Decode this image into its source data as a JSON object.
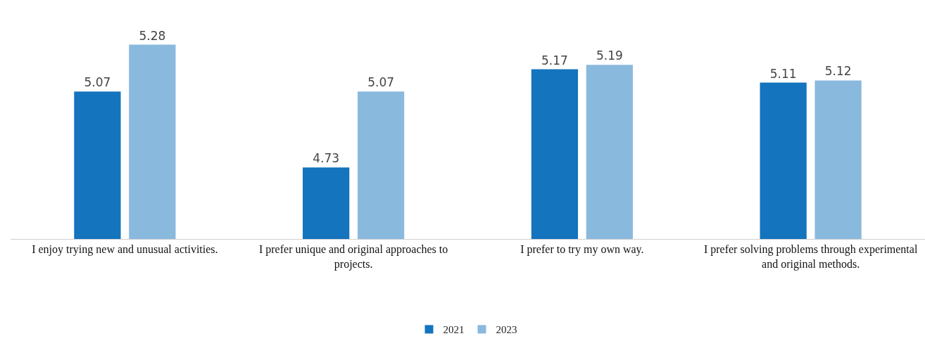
{
  "chart_data": {
    "type": "bar",
    "categories": [
      "I enjoy trying new and unusual activities.",
      "I prefer unique and original approaches to projects.",
      "I prefer to try my own way.",
      "I prefer solving problems through experimental and original methods."
    ],
    "series": [
      {
        "name": "2021",
        "color": "#1474bd",
        "values": [
          5.07,
          4.73,
          5.17,
          5.11
        ]
      },
      {
        "name": "2023",
        "color": "#8ab9de",
        "values": [
          5.28,
          5.07,
          5.19,
          5.12
        ]
      }
    ],
    "ylim": [
      4.41,
      5.48
    ],
    "data_labels": true,
    "legend": "bottom",
    "grid": false,
    "tick_labels": "x"
  }
}
